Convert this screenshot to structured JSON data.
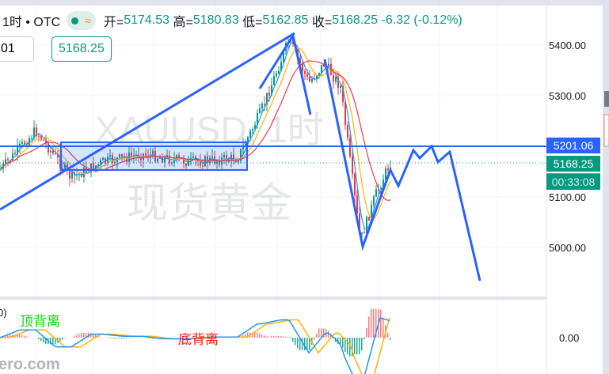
{
  "header": {
    "interval": "1时 • OTC",
    "open_label": "开=",
    "open": "5174.53",
    "high_label": "高=",
    "high": "5180.83",
    "low_label": "低=",
    "low": "5162.85",
    "close_label": "收=",
    "close": "5168.25",
    "change": "-6.32 (-0.12%)",
    "status_icon": "green-dot-icon",
    "wave_icon": "≈"
  },
  "inputs": {
    "field_value": "01",
    "price_value": "5168.25"
  },
  "watermark": {
    "line1": "XAUUSD, 1时",
    "line2": "现货黄金"
  },
  "price_axis": {
    "ticks": [
      "5400.00",
      "5300.00",
      "5100.00",
      "5000.00"
    ],
    "line_price": "5201.06",
    "last_price": "5168.25",
    "countdown": "00:33:08"
  },
  "macd": {
    "zero_label": "0.00",
    "partial_label": "0)",
    "annotation_top": "顶背离",
    "annotation_bottom": "底背离"
  },
  "logo": "ero.com",
  "colors": {
    "up": "#089981",
    "down": "#f23645",
    "drawing": "#2962ff",
    "ma_fast": "#2196f3",
    "ma_mid": "#ffb300",
    "ma_slow": "#f23645"
  }
}
